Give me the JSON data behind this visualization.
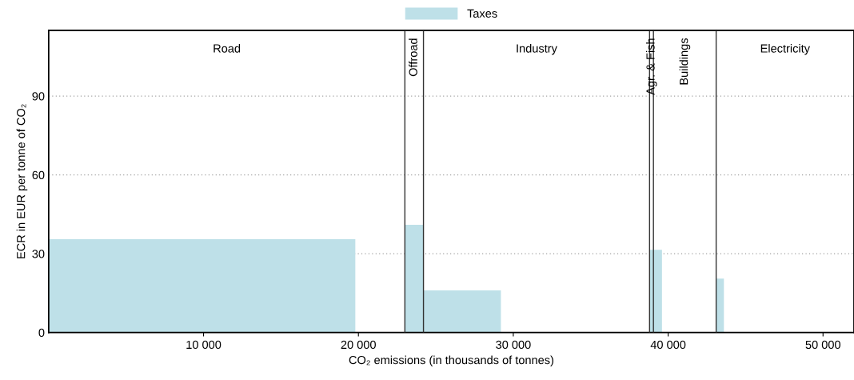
{
  "chart_data": {
    "type": "histogram",
    "bins": [
      0,
      19800,
      23000,
      24200,
      29200,
      38800,
      39600,
      43100,
      43600
    ],
    "series": [
      {
        "name": "Taxes",
        "color": "#bee0e8",
        "values": [
          35.5,
          0,
          41,
          16,
          0,
          31.5,
          0,
          20.5
        ]
      }
    ],
    "xlabel": "CO₂ emissions (in thousands of tonnes)",
    "ylabel": "ECR in EUR per tonne of CO₂",
    "xlim": [
      0,
      52000
    ],
    "xticks": [
      {
        "value": 10000,
        "label": "10 000"
      },
      {
        "value": 20000,
        "label": "20 000"
      },
      {
        "value": 30000,
        "label": "30 000"
      },
      {
        "value": 40000,
        "label": "40 000"
      },
      {
        "value": 50000,
        "label": "50 000"
      }
    ],
    "ylim": [
      0,
      115
    ],
    "yticks": [
      0,
      30,
      60,
      90
    ],
    "grid": "y",
    "legend": "top",
    "ref_lines": [
      {
        "axis": "x",
        "value": 23000,
        "color": "#333333"
      },
      {
        "axis": "x",
        "value": 24200,
        "color": "#333333"
      },
      {
        "axis": "x",
        "value": 38800,
        "color": "#333333"
      },
      {
        "axis": "x",
        "value": 39050,
        "color": "#333333"
      },
      {
        "axis": "x",
        "value": 43100,
        "color": "#333333"
      }
    ],
    "annotations": [
      "Road",
      "Offroad",
      "Industry",
      "Agr. & Fish",
      "Buildings",
      "Electricity"
    ]
  }
}
